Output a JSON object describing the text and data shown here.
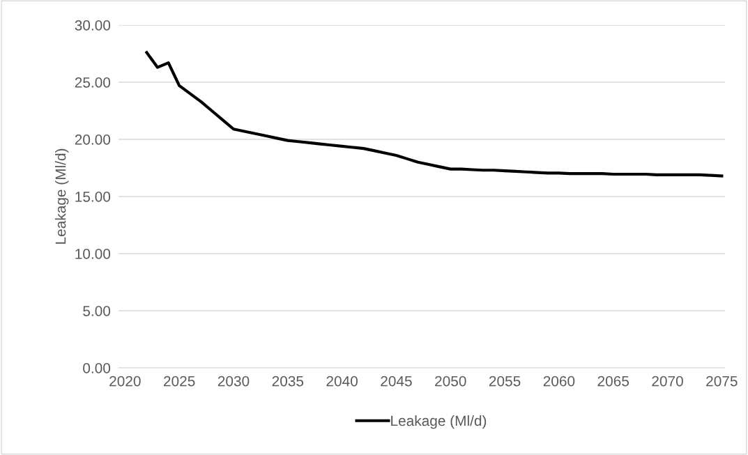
{
  "chart_data": {
    "type": "line",
    "ylabel": "Leakage (Ml/d)",
    "x": [
      2022,
      2023,
      2024,
      2025,
      2026,
      2027,
      2028,
      2029,
      2030,
      2031,
      2032,
      2033,
      2034,
      2035,
      2036,
      2037,
      2038,
      2039,
      2040,
      2041,
      2042,
      2043,
      2044,
      2045,
      2046,
      2047,
      2048,
      2049,
      2050,
      2051,
      2052,
      2053,
      2054,
      2055,
      2056,
      2057,
      2058,
      2059,
      2060,
      2061,
      2062,
      2063,
      2064,
      2065,
      2066,
      2067,
      2068,
      2069,
      2070,
      2071,
      2072,
      2073,
      2074,
      2075
    ],
    "series": [
      {
        "name": "Leakage (Ml/d)",
        "color": "#000000",
        "values": [
          27.6,
          26.3,
          26.7,
          24.7,
          24.0,
          23.3,
          22.5,
          21.7,
          20.9,
          20.7,
          20.5,
          20.3,
          20.1,
          19.9,
          19.8,
          19.7,
          19.6,
          19.5,
          19.4,
          19.3,
          19.2,
          19.0,
          18.8,
          18.6,
          18.3,
          18.0,
          17.8,
          17.6,
          17.4,
          17.4,
          17.35,
          17.3,
          17.3,
          17.25,
          17.2,
          17.15,
          17.1,
          17.05,
          17.05,
          17.0,
          17.0,
          17.0,
          17.0,
          16.95,
          16.95,
          16.95,
          16.95,
          16.9,
          16.9,
          16.9,
          16.9,
          16.9,
          16.85,
          16.8
        ]
      }
    ],
    "xlim": [
      2019.4,
      2075.3
    ],
    "xticks": [
      2020,
      2025,
      2030,
      2035,
      2040,
      2045,
      2050,
      2055,
      2060,
      2065,
      2070,
      2075
    ],
    "ylim": [
      0,
      30
    ],
    "yticks": [
      {
        "value": 0,
        "label": "0.00"
      },
      {
        "value": 5,
        "label": "5.00"
      },
      {
        "value": 10,
        "label": "10.00"
      },
      {
        "value": 15,
        "label": "15.00"
      },
      {
        "value": 20,
        "label": "20.00"
      },
      {
        "value": 25,
        "label": "25.00"
      },
      {
        "value": 30,
        "label": "30.00"
      }
    ],
    "grid": "y",
    "legend": "bottom",
    "marker": "none",
    "line_style": "solid"
  }
}
